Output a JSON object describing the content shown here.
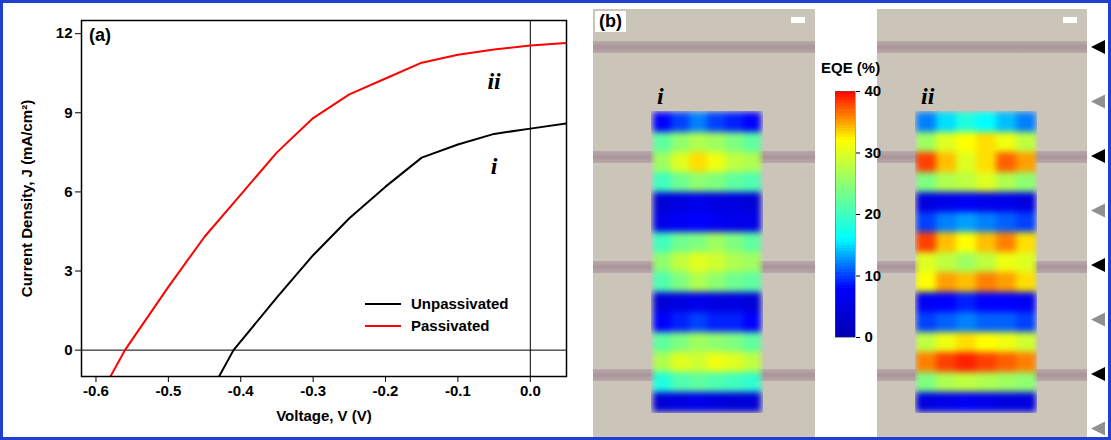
{
  "chart_data": [
    {
      "type": "line",
      "label": "(a)",
      "x_label": "Voltage, V (V)",
      "y_label": "Current Density, J (mA/cm²)",
      "xlim": [
        -0.62,
        0.05
      ],
      "xticks": [
        -0.6,
        -0.5,
        -0.4,
        -0.3,
        -0.2,
        -0.1,
        {
          "value": 0,
          "label": "0.0"
        }
      ],
      "ylim": [
        -1,
        12.5
      ],
      "yticks": [
        0,
        3,
        6,
        9,
        12
      ],
      "legend": "bottom right",
      "reference_lines": [
        {
          "axis": "x",
          "value": 0
        },
        {
          "axis": "y",
          "value": 0
        }
      ],
      "series": [
        {
          "name": "Unpassivated",
          "color": "#000000",
          "annotation": "i",
          "x": [
            -0.43,
            -0.41,
            -0.35,
            -0.3,
            -0.25,
            -0.2,
            -0.15,
            -0.1,
            -0.05,
            0,
            0.05
          ],
          "values": [
            -1,
            0,
            2.0,
            3.6,
            5.0,
            6.2,
            7.3,
            7.8,
            8.2,
            8.4,
            8.6
          ]
        },
        {
          "name": "Passivated",
          "color": "#ff0000",
          "annotation": "ii",
          "x": [
            -0.58,
            -0.56,
            -0.5,
            -0.45,
            -0.4,
            -0.35,
            -0.3,
            -0.25,
            -0.2,
            -0.15,
            -0.1,
            -0.05,
            0,
            0.05
          ],
          "values": [
            -1,
            0,
            2.4,
            4.3,
            5.9,
            7.5,
            8.8,
            9.7,
            10.3,
            10.9,
            11.2,
            11.4,
            11.55,
            11.65
          ]
        }
      ]
    },
    {
      "type": "heatmap",
      "label": "(b)",
      "tick_labels": false,
      "colorbar": {
        "title": "EQE (%)",
        "range": [
          0,
          40
        ],
        "ticks": [
          0,
          10,
          20,
          30,
          40
        ]
      },
      "maps": [
        {
          "name": "i",
          "cells": [
            [
              8,
              10,
              12,
              10,
              9,
              8
            ],
            [
              22,
              25,
              27,
              26,
              24,
              22
            ],
            [
              26,
              30,
              33,
              31,
              28,
              27
            ],
            [
              20,
              23,
              25,
              24,
              22,
              21
            ],
            [
              4,
              5,
              6,
              5,
              5,
              4
            ],
            [
              6,
              7,
              8,
              7,
              6,
              6
            ],
            [
              20,
              23,
              24,
              26,
              24,
              22
            ],
            [
              25,
              28,
              30,
              29,
              27,
              26
            ],
            [
              21,
              24,
              27,
              25,
              23,
              22
            ],
            [
              4,
              5,
              6,
              5,
              5,
              4
            ],
            [
              8,
              9,
              10,
              9,
              9,
              8
            ],
            [
              22,
              24,
              26,
              25,
              24,
              22
            ],
            [
              27,
              30,
              29,
              31,
              30,
              28
            ],
            [
              18,
              21,
              22,
              21,
              20,
              19
            ],
            [
              4,
              5,
              6,
              5,
              4,
              4
            ]
          ]
        },
        {
          "name": "ii",
          "cells": [
            [
              12,
              15,
              18,
              16,
              14,
              12
            ],
            [
              26,
              30,
              32,
              33,
              31,
              28
            ],
            [
              38,
              34,
              30,
              33,
              37,
              35
            ],
            [
              24,
              27,
              28,
              30,
              27,
              25
            ],
            [
              5,
              6,
              7,
              6,
              6,
              5
            ],
            [
              10,
              12,
              13,
              12,
              11,
              10
            ],
            [
              38,
              34,
              32,
              34,
              36,
              33
            ],
            [
              30,
              28,
              26,
              28,
              31,
              30
            ],
            [
              32,
              35,
              34,
              36,
              35,
              33
            ],
            [
              7,
              8,
              9,
              8,
              8,
              7
            ],
            [
              10,
              11,
              12,
              11,
              11,
              10
            ],
            [
              28,
              31,
              33,
              32,
              31,
              29
            ],
            [
              36,
              38,
              39,
              38,
              37,
              36
            ],
            [
              24,
              27,
              28,
              27,
              26,
              25
            ],
            [
              5,
              6,
              7,
              6,
              5,
              5
            ]
          ]
        }
      ]
    }
  ]
}
